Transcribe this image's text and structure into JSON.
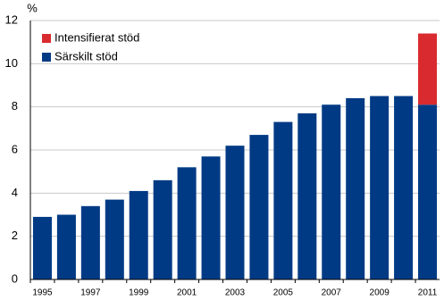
{
  "chart_data": {
    "type": "stacked-bar",
    "ylabel": "%",
    "categories": [
      "1995",
      null,
      "1997",
      null,
      "1999",
      null,
      "2001",
      null,
      "2003",
      null,
      "2005",
      null,
      "2007",
      null,
      "2009",
      null,
      "2011"
    ],
    "series": [
      {
        "name": "Särskilt stöd",
        "color": "#003a84",
        "values": [
          2.9,
          3.0,
          3.4,
          3.7,
          4.1,
          4.6,
          5.2,
          5.7,
          6.2,
          6.7,
          7.3,
          7.7,
          8.1,
          8.4,
          8.5,
          8.5,
          8.1
        ]
      },
      {
        "name": "Intensifierat stöd",
        "color": "#d92b2f",
        "values": [
          null,
          null,
          null,
          null,
          null,
          null,
          null,
          null,
          null,
          null,
          null,
          null,
          null,
          null,
          null,
          null,
          3.3
        ]
      }
    ],
    "ylim": [
      0,
      12
    ],
    "yticks": [
      0,
      2,
      4,
      6,
      8,
      10,
      12
    ],
    "grid": true
  }
}
